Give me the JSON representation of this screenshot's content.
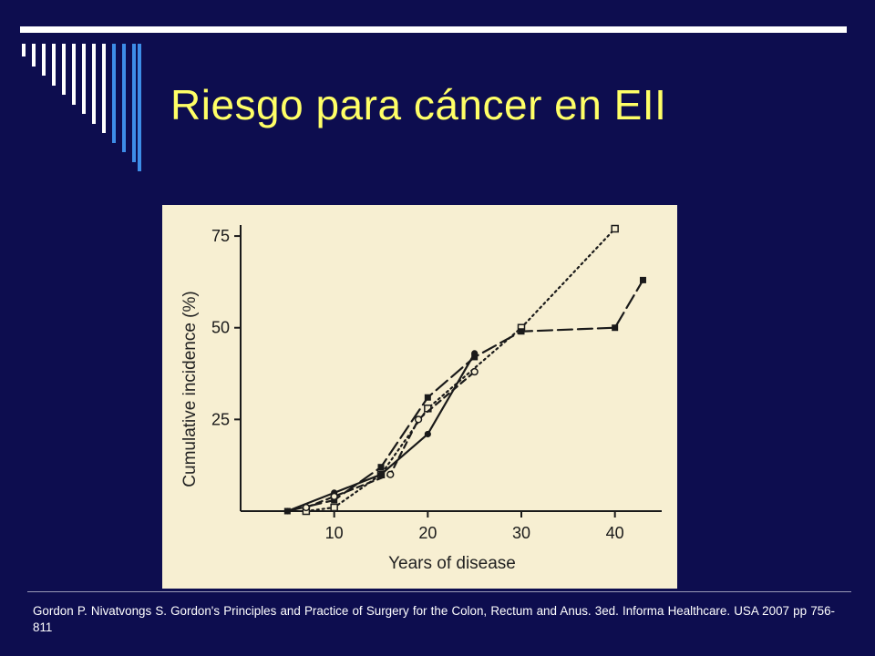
{
  "slide": {
    "title": "Riesgo para cáncer en EII",
    "citation": "Gordon P. Nivatvongs S. Gordon's Principles and Practice of Surgery for the Colon, Rectum and Anus. 3ed. Informa Healthcare. USA 2007 pp 756-811",
    "colors": {
      "background": "#0d0d4f",
      "title": "#ffff66",
      "chart_background": "#f7efd2",
      "decor_stripes": [
        "#ffffff",
        "#3d8de8"
      ]
    }
  },
  "chart_data": {
    "type": "line",
    "title": "",
    "xlabel": "Years of disease",
    "ylabel": "Cumulative incidence (%)",
    "xlim": [
      0,
      45
    ],
    "ylim": [
      0,
      78
    ],
    "xticks": [
      10,
      20,
      30,
      40
    ],
    "yticks": [
      25,
      50,
      75
    ],
    "grid": false,
    "legend": "none",
    "series": [
      {
        "style": "dotted",
        "marker": "open-square",
        "x": [
          7,
          10,
          15,
          20,
          30,
          40
        ],
        "y": [
          0,
          1,
          10,
          28,
          50,
          77
        ]
      },
      {
        "style": "dash",
        "marker": "filled-square",
        "x": [
          5,
          10,
          15,
          20,
          25,
          30,
          40,
          43
        ],
        "y": [
          0,
          3,
          12,
          31,
          42,
          49,
          50,
          63
        ]
      },
      {
        "style": "solid",
        "marker": "filled-circle",
        "x": [
          5,
          10,
          15,
          20,
          25
        ],
        "y": [
          0,
          5,
          10,
          21,
          43
        ]
      },
      {
        "style": "short-dash",
        "marker": "open-circle",
        "x": [
          7,
          10,
          16,
          19,
          25
        ],
        "y": [
          1,
          4,
          10,
          25,
          38
        ]
      }
    ]
  }
}
